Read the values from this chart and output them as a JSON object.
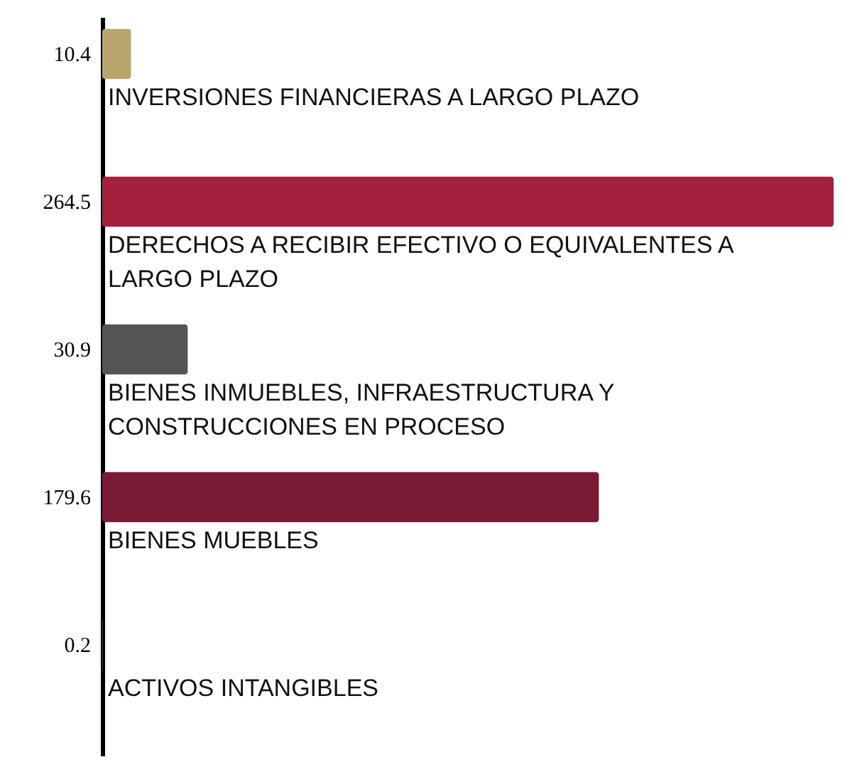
{
  "chart_data": {
    "type": "bar",
    "orientation": "horizontal",
    "categories": [
      "INVERSIONES FINANCIERAS A LARGO PLAZO",
      "DERECHOS A RECIBIR EFECTIVO O EQUIVALENTES A LARGO PLAZO",
      "BIENES INMUEBLES, INFRAESTRUCTURA Y CONSTRUCCIONES EN PROCESO",
      "BIENES MUEBLES",
      "ACTIVOS INTANGIBLES"
    ],
    "values": [
      10.4,
      264.5,
      30.9,
      179.6,
      0.2
    ],
    "colors": [
      "#b8a66c",
      "#a3213f",
      "#555555",
      "#7b1a36",
      "#6e2452"
    ],
    "data_labels": true
  }
}
